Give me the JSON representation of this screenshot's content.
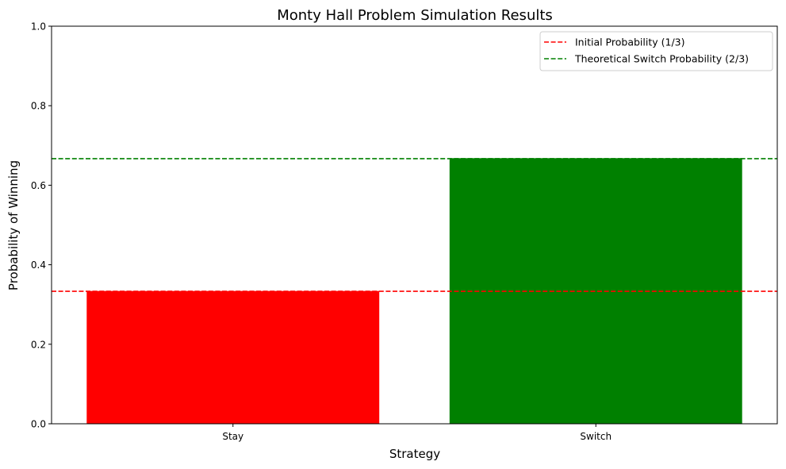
{
  "chart_data": {
    "type": "bar",
    "title": "Monty Hall Problem Simulation Results",
    "xlabel": "Strategy",
    "ylabel": "Probability of Winning",
    "categories": [
      "Stay",
      "Switch"
    ],
    "values": [
      0.334,
      0.668
    ],
    "bar_colors": [
      "#ff0000",
      "#008000"
    ],
    "ylim": [
      0,
      1
    ],
    "yticks": [
      "0.0",
      "0.2",
      "0.4",
      "0.6",
      "0.8",
      "1.0"
    ],
    "grid": false,
    "reference_lines": [
      {
        "label": "Initial Probability (1/3)",
        "value": 0.3333,
        "color": "#ff0000",
        "style": "dashed"
      },
      {
        "label": "Theoretical Switch Probability (2/3)",
        "value": 0.6667,
        "color": "#008000",
        "style": "dashed"
      }
    ],
    "legend_position": "top-right"
  }
}
